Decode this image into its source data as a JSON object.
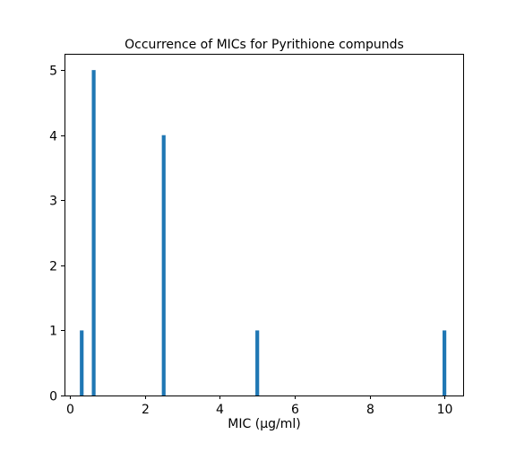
{
  "chart_data": {
    "type": "bar",
    "title": "Occurrence of MICs for Pyrithione compunds",
    "xlabel": "MIC (µg/ml)",
    "ylabel": "",
    "xlim": [
      -0.15,
      10.5
    ],
    "ylim": [
      0,
      5.25
    ],
    "xticks": [
      0,
      2,
      4,
      6,
      8,
      10
    ],
    "xtick_labels": [
      "0",
      "2",
      "4",
      "6",
      "8",
      "10"
    ],
    "yticks": [
      0,
      1,
      2,
      3,
      4,
      5
    ],
    "ytick_labels": [
      "0",
      "1",
      "2",
      "3",
      "4",
      "5"
    ],
    "bar_width": 0.1,
    "grid": false,
    "bar_color": "#1f77b4",
    "x": [
      0.31,
      0.63,
      2.5,
      5,
      10
    ],
    "values": [
      1,
      5,
      4,
      1,
      1
    ]
  }
}
